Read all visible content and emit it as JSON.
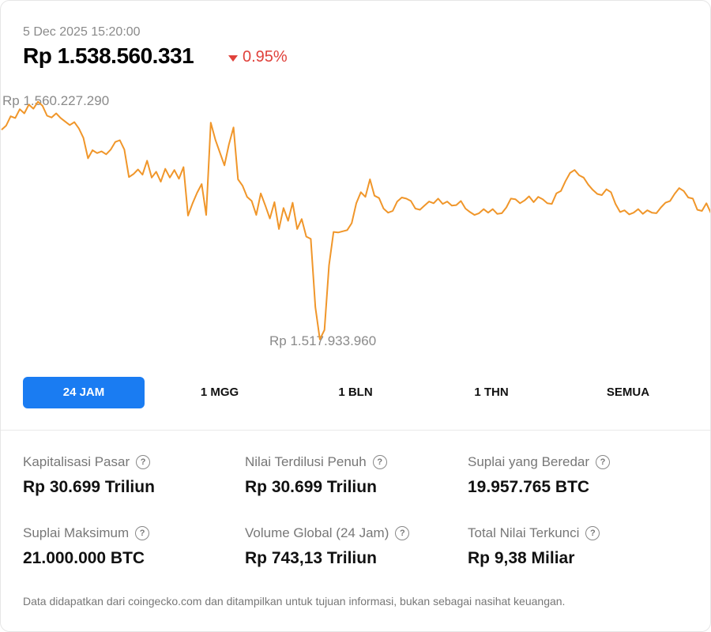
{
  "header": {
    "timestamp": "5 Dec 2025 15:20:00",
    "price": "Rp 1.538.560.331",
    "change": "0.95%",
    "change_color": "#e0413b"
  },
  "chart_data": {
    "type": "line",
    "series": [
      {
        "color": "#f0962a",
        "values": [
          1554.8,
          1555.5,
          1557.1,
          1556.8,
          1558.3,
          1557.6,
          1559.1,
          1558.4,
          1559.6,
          1558.9,
          1557.2,
          1556.9,
          1557.6,
          1556.8,
          1556.2,
          1555.6,
          1556.1,
          1555.0,
          1553.4,
          1549.9,
          1551.3,
          1550.8,
          1551.1,
          1550.6,
          1551.4,
          1552.7,
          1553.0,
          1551.4,
          1546.7,
          1547.2,
          1548.0,
          1547.1,
          1549.5,
          1546.6,
          1547.6,
          1545.9,
          1548.1,
          1546.6,
          1547.9,
          1546.4,
          1548.4,
          1540.1,
          1542.2,
          1544.0,
          1545.5,
          1540.2,
          1556.0,
          1553.1,
          1550.9,
          1548.7,
          1552.3,
          1555.2,
          1546.3,
          1545.2,
          1543.3,
          1542.6,
          1540.2,
          1543.9,
          1541.8,
          1539.6,
          1542.4,
          1537.8,
          1541.4,
          1539.2,
          1542.3,
          1537.8,
          1539.5,
          1536.5,
          1536.1,
          1524.4,
          1518.9,
          1520.5,
          1531.6,
          1537.3,
          1537.2,
          1537.4,
          1537.6,
          1538.8,
          1542.2,
          1544.1,
          1543.3,
          1546.3,
          1543.5,
          1543.1,
          1541.3,
          1540.6,
          1540.9,
          1542.5,
          1543.2,
          1543.0,
          1542.6,
          1541.3,
          1541.1,
          1541.8,
          1542.5,
          1542.2,
          1543.0,
          1542.1,
          1542.5,
          1541.8,
          1541.9,
          1542.6,
          1541.3,
          1540.7,
          1540.2,
          1540.5,
          1541.2,
          1540.6,
          1541.2,
          1540.4,
          1540.5,
          1541.5,
          1543.0,
          1542.9,
          1542.2,
          1542.7,
          1543.4,
          1542.4,
          1543.3,
          1542.9,
          1542.2,
          1542.1,
          1543.9,
          1544.3,
          1546.0,
          1547.4,
          1547.9,
          1547.0,
          1546.6,
          1545.4,
          1544.5,
          1543.8,
          1543.6,
          1544.6,
          1544.1,
          1542.1,
          1540.7,
          1541.0,
          1540.3,
          1540.6,
          1541.2,
          1540.4,
          1541.0,
          1540.6,
          1540.5,
          1541.5,
          1542.3,
          1542.6,
          1543.8,
          1544.8,
          1544.3,
          1543.2,
          1543.0,
          1541.1,
          1540.9,
          1542.2,
          1540.5
        ],
        "color_name": "orange"
      }
    ],
    "max_label": "Rp 1.560.227.290",
    "min_label": "Rp 1.517.933.960",
    "ylim": [
      1516,
      1562
    ],
    "grid": false
  },
  "tabs": [
    {
      "label": "24 JAM",
      "active": true
    },
    {
      "label": "1 MGG",
      "active": false
    },
    {
      "label": "1 BLN",
      "active": false
    },
    {
      "label": "1 THN",
      "active": false
    },
    {
      "label": "SEMUA",
      "active": false
    }
  ],
  "stats": [
    {
      "label": "Kapitalisasi Pasar",
      "value": "Rp 30.699 Triliun"
    },
    {
      "label": "Nilai Terdilusi Penuh",
      "value": "Rp 30.699 Triliun"
    },
    {
      "label": "Suplai yang Beredar",
      "value": "19.957.765 BTC"
    },
    {
      "label": "Suplai Maksimum",
      "value": "21.000.000 BTC"
    },
    {
      "label": "Volume Global (24 Jam)",
      "value": "Rp 743,13 Triliun"
    },
    {
      "label": "Total Nilai Terkunci",
      "value": "Rp 9,38 Miliar"
    }
  ],
  "help_icon": "question-circle-icon",
  "accent_color": "#1a7cf2",
  "footer": "Data didapatkan dari coingecko.com dan ditampilkan untuk tujuan informasi, bukan sebagai nasihat keuangan."
}
